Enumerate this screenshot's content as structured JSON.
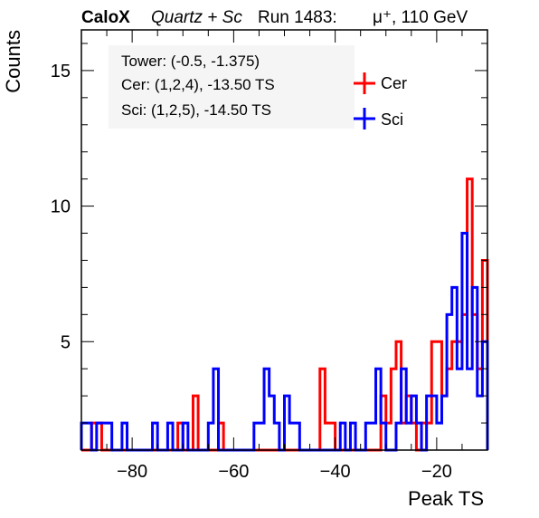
{
  "header": {
    "brand": "CaloX",
    "detector": "Quartz + Sc",
    "run": "Run 1483:",
    "beam": "μ⁺, 110 GeV"
  },
  "info": {
    "tower": "Tower: (-0.5, -1.375)",
    "cer": "Cer: (1,2,4), -13.50 TS",
    "sci": "Sci: (1,2,5), -14.50 TS"
  },
  "colors": {
    "cer": "#ff0000",
    "sci": "#0000ff",
    "info_bg": "#f5f5f5"
  },
  "chart_data": {
    "type": "histogram",
    "xlabel": "Peak TS",
    "ylabel": "Counts",
    "xlim": [
      -90,
      -10
    ],
    "ylim": [
      1,
      16.5
    ],
    "bin_width": 1,
    "x_ticks": [
      -80,
      -60,
      -40,
      -20
    ],
    "x_tick_labels": [
      "−80",
      "−60",
      "−40",
      "−20"
    ],
    "y_ticks": [
      5,
      10,
      15
    ],
    "y_tick_labels": [
      "5",
      "10",
      "15"
    ],
    "series": [
      {
        "name": "Cer",
        "bin_edges_start": -90,
        "values": [
          1,
          1,
          2,
          2,
          1,
          1,
          1,
          1,
          1,
          1,
          1,
          1,
          1,
          1,
          1,
          1,
          1,
          1,
          1,
          2,
          1,
          1,
          3,
          1,
          1,
          1,
          1,
          2,
          1,
          1,
          1,
          1,
          1,
          1,
          1,
          1,
          1,
          1,
          1,
          1,
          1,
          1,
          1,
          1,
          1,
          1,
          1,
          4,
          2,
          2,
          1,
          1,
          1,
          1,
          1,
          1,
          1,
          1,
          1,
          3,
          2,
          4,
          5,
          2,
          3,
          2,
          1,
          2,
          2,
          5,
          5,
          3,
          4,
          5,
          5,
          6,
          11,
          6,
          4,
          8
        ]
      },
      {
        "name": "Sci",
        "bin_edges_start": -90,
        "values": [
          2,
          2,
          1,
          2,
          2,
          2,
          1,
          1,
          2,
          1,
          1,
          1,
          1,
          1,
          2,
          1,
          1,
          2,
          1,
          1,
          2,
          1,
          1,
          1,
          1,
          2,
          4,
          1,
          1,
          1,
          1,
          1,
          1,
          1,
          2,
          2,
          4,
          3,
          2,
          1,
          3,
          2,
          2,
          1,
          1,
          1,
          1,
          1,
          1,
          1,
          1,
          2,
          1,
          2,
          1,
          1,
          2,
          2,
          4,
          2,
          1,
          1,
          2,
          4,
          2,
          3,
          2,
          1,
          3,
          3,
          2,
          3,
          6,
          7,
          4,
          9,
          4,
          7,
          3,
          5
        ]
      }
    ]
  }
}
